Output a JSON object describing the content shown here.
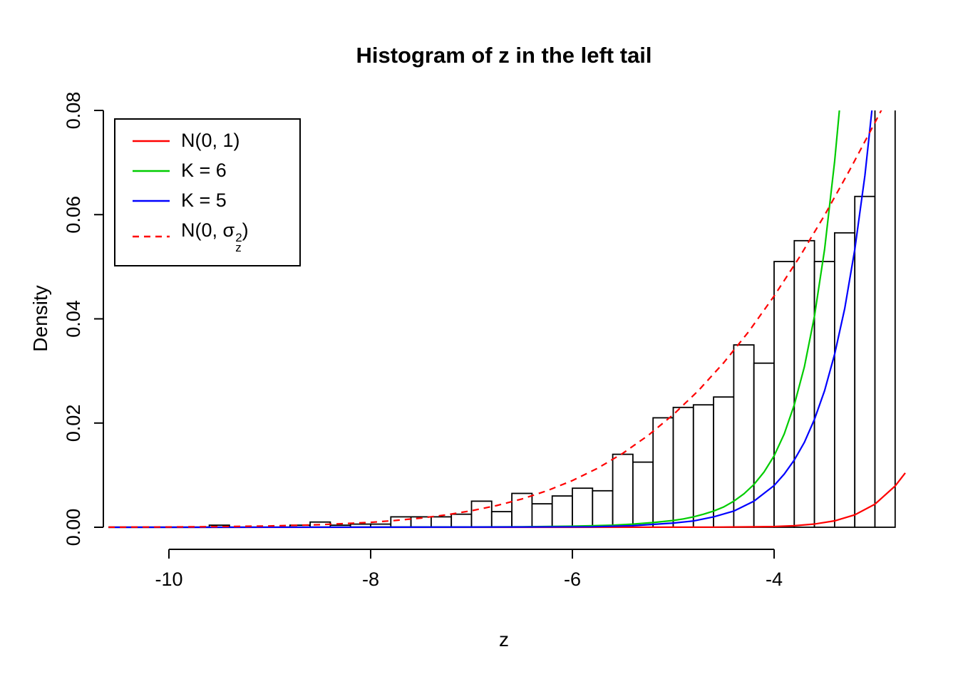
{
  "title": "Histogram of z in the left tail",
  "axes": {
    "xlabel": "z",
    "ylabel": "Density",
    "x_tick_labels": [
      "-10",
      "-8",
      "-6",
      "-4"
    ],
    "y_tick_labels": [
      "0.00",
      "0.02",
      "0.04",
      "0.06",
      "0.08"
    ]
  },
  "legend": {
    "entries": [
      {
        "label": "N(0, 1)",
        "color": "#ff0000",
        "dashed": false
      },
      {
        "label": "K = 6",
        "color": "#00cc00",
        "dashed": false
      },
      {
        "label": "K = 5",
        "color": "#0000ff",
        "dashed": false
      },
      {
        "label_prefix": "N(0, σ",
        "label_sup": "2",
        "label_sub": "z",
        "label_suffix": ")",
        "color": "#ff0000",
        "dashed": true
      }
    ]
  },
  "chart_data": {
    "type": "bar",
    "subtype": "histogram-with-density-curves",
    "title": "Histogram of z in the left tail",
    "xlabel": "z",
    "ylabel": "Density",
    "xlim": [
      -10.65,
      -2.7
    ],
    "ylim": [
      0,
      0.08
    ],
    "x_ticks": [
      -10,
      -8,
      -6,
      -4
    ],
    "y_ticks": [
      0,
      0.02,
      0.04,
      0.06,
      0.08
    ],
    "grid": false,
    "legend_position": "top-left",
    "bin_width": 0.2,
    "bins": [
      [
        -9.6,
        0.0004
      ],
      [
        -8.8,
        0.0004
      ],
      [
        -8.6,
        0.001
      ],
      [
        -8.4,
        0.0004
      ],
      [
        -8.2,
        0.0006
      ],
      [
        -8.0,
        0.0006
      ],
      [
        -7.8,
        0.002
      ],
      [
        -7.6,
        0.002
      ],
      [
        -7.4,
        0.002
      ],
      [
        -7.2,
        0.0025
      ],
      [
        -7.0,
        0.005
      ],
      [
        -6.8,
        0.003
      ],
      [
        -6.6,
        0.0065
      ],
      [
        -6.4,
        0.0045
      ],
      [
        -6.2,
        0.006
      ],
      [
        -6.0,
        0.0075
      ],
      [
        -5.8,
        0.007
      ],
      [
        -5.6,
        0.014
      ],
      [
        -5.4,
        0.0125
      ],
      [
        -5.2,
        0.021
      ],
      [
        -5.0,
        0.023
      ],
      [
        -4.8,
        0.0235
      ],
      [
        -4.6,
        0.025
      ],
      [
        -4.4,
        0.035
      ],
      [
        -4.2,
        0.0315
      ],
      [
        -4.0,
        0.051
      ],
      [
        -3.8,
        0.055
      ],
      [
        -3.6,
        0.051
      ],
      [
        -3.4,
        0.0565
      ],
      [
        -3.2,
        0.0635
      ],
      [
        -3.0,
        0.12
      ]
    ],
    "series": [
      {
        "id": "n01",
        "name": "N(0, 1)",
        "color": "#ff0000",
        "dashed": false,
        "points": [
          [
            -10.6,
            0
          ],
          [
            -9,
            0
          ],
          [
            -8,
            0
          ],
          [
            -7,
            0
          ],
          [
            -6,
            0
          ],
          [
            -5,
            1e-05
          ],
          [
            -4.6,
            3e-05
          ],
          [
            -4.2,
            8e-05
          ],
          [
            -4.0,
            0.00013
          ],
          [
            -3.8,
            0.00029
          ],
          [
            -3.6,
            0.00061
          ],
          [
            -3.4,
            0.00123
          ],
          [
            -3.2,
            0.00238
          ],
          [
            -3.0,
            0.00443
          ],
          [
            -2.8,
            0.00792
          ],
          [
            -2.7,
            0.01042
          ]
        ]
      },
      {
        "id": "k6",
        "name": "K = 6",
        "color": "#00cc00",
        "dashed": false,
        "points": [
          [
            -10.6,
            0
          ],
          [
            -8,
            2e-05
          ],
          [
            -7,
            5e-05
          ],
          [
            -6.5,
            0.0001
          ],
          [
            -6.0,
            0.0002
          ],
          [
            -5.8,
            0.0003
          ],
          [
            -5.6,
            0.0004
          ],
          [
            -5.4,
            0.0006
          ],
          [
            -5.2,
            0.0009
          ],
          [
            -5.0,
            0.0013
          ],
          [
            -4.9,
            0.0016
          ],
          [
            -4.8,
            0.002
          ],
          [
            -4.7,
            0.0025
          ],
          [
            -4.6,
            0.0031
          ],
          [
            -4.5,
            0.0039
          ],
          [
            -4.4,
            0.005
          ],
          [
            -4.3,
            0.0064
          ],
          [
            -4.2,
            0.0082
          ],
          [
            -4.1,
            0.0106
          ],
          [
            -4.0,
            0.0137
          ],
          [
            -3.9,
            0.0179
          ],
          [
            -3.8,
            0.0235
          ],
          [
            -3.7,
            0.0308
          ],
          [
            -3.6,
            0.0405
          ],
          [
            -3.5,
            0.0533
          ],
          [
            -3.4,
            0.0702
          ],
          [
            -3.35,
            0.0806
          ],
          [
            -3.3,
            0.0926
          ]
        ]
      },
      {
        "id": "k5",
        "name": "K = 5",
        "color": "#0000ff",
        "dashed": false,
        "points": [
          [
            -10.6,
            0
          ],
          [
            -8,
            2e-05
          ],
          [
            -6.5,
            5e-05
          ],
          [
            -5.8,
            0.0001
          ],
          [
            -5.4,
            0.0003
          ],
          [
            -5.0,
            0.0008
          ],
          [
            -4.8,
            0.0012
          ],
          [
            -4.6,
            0.002
          ],
          [
            -4.4,
            0.0031
          ],
          [
            -4.2,
            0.005
          ],
          [
            -4.0,
            0.008
          ],
          [
            -3.9,
            0.0102
          ],
          [
            -3.8,
            0.0129
          ],
          [
            -3.7,
            0.0163
          ],
          [
            -3.6,
            0.0207
          ],
          [
            -3.5,
            0.0262
          ],
          [
            -3.4,
            0.0332
          ],
          [
            -3.3,
            0.042
          ],
          [
            -3.2,
            0.0533
          ],
          [
            -3.1,
            0.0675
          ],
          [
            -3.0,
            0.0855
          ]
        ]
      },
      {
        "id": "n0sz2",
        "name": "N(0, σz²)",
        "color": "#ff0000",
        "dashed": true,
        "points": [
          [
            -10.6,
            2e-05
          ],
          [
            -10,
            5e-05
          ],
          [
            -9.5,
            0.00012
          ],
          [
            -9.0,
            0.00024
          ],
          [
            -8.5,
            0.00049
          ],
          [
            -8.0,
            0.00095
          ],
          [
            -7.75,
            0.00131
          ],
          [
            -7.5,
            0.00177
          ],
          [
            -7.25,
            0.00238
          ],
          [
            -7.0,
            0.00317
          ],
          [
            -6.75,
            0.00417
          ],
          [
            -6.5,
            0.00543
          ],
          [
            -6.25,
            0.00701
          ],
          [
            -6.0,
            0.00896
          ],
          [
            -5.75,
            0.01132
          ],
          [
            -5.5,
            0.01419
          ],
          [
            -5.25,
            0.01761
          ],
          [
            -5.0,
            0.0216
          ],
          [
            -4.75,
            0.02624
          ],
          [
            -4.5,
            0.03158
          ],
          [
            -4.25,
            0.0376
          ],
          [
            -4.0,
            0.04437
          ],
          [
            -3.75,
            0.0518
          ],
          [
            -3.5,
            0.05989
          ],
          [
            -3.25,
            0.0686
          ],
          [
            -3.0,
            0.07767
          ],
          [
            -2.9,
            0.08143
          ],
          [
            -2.85,
            0.0834
          ]
        ]
      }
    ]
  }
}
